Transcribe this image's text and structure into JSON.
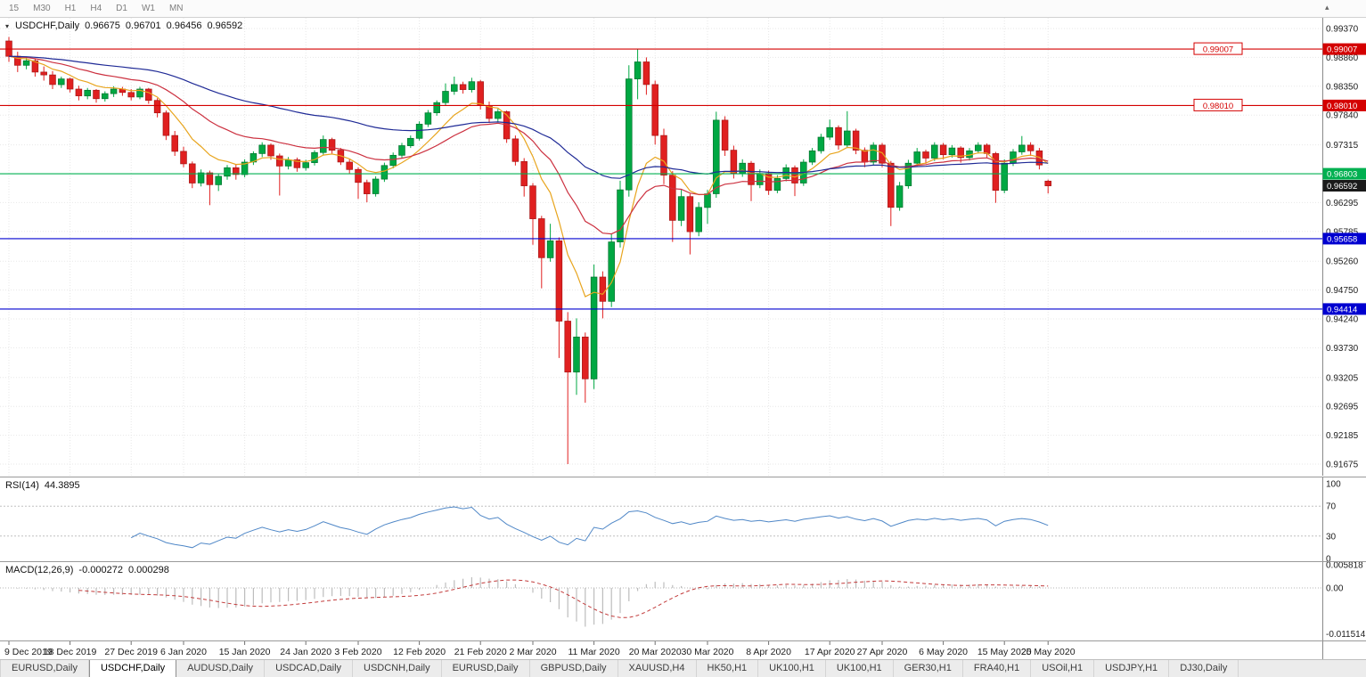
{
  "toolbar": {
    "timeframes": [
      "15",
      "M30",
      "H1",
      "H4",
      "D1",
      "W1",
      "MN"
    ],
    "scroll_icon": "▴"
  },
  "main": {
    "symbol_icon": "▾",
    "symbol": "USDCHF,Daily",
    "ohlc": {
      "open": "0.96675",
      "high": "0.96701",
      "low": "0.96456",
      "close": "0.96592"
    }
  },
  "rsi": {
    "name": "RSI(14)",
    "value": "44.3895",
    "axis": [
      "100",
      "70",
      "30",
      "0"
    ],
    "levels": [
      70,
      30
    ]
  },
  "macd": {
    "name": "MACD(12,26,9)",
    "main_value": "-0.000272",
    "signal_value": "0.000298",
    "axis": [
      "0.005818",
      "0.00",
      "-0.011514"
    ]
  },
  "tabs": [
    {
      "label": "EURUSD,Daily",
      "active": false
    },
    {
      "label": "USDCHF,Daily",
      "active": true
    },
    {
      "label": "AUDUSD,Daily",
      "active": false
    },
    {
      "label": "USDCAD,Daily",
      "active": false
    },
    {
      "label": "USDCNH,Daily",
      "active": false
    },
    {
      "label": "EURUSD,Daily",
      "active": false
    },
    {
      "label": "GBPUSD,Daily",
      "active": false
    },
    {
      "label": "XAUUSD,H4",
      "active": false
    },
    {
      "label": "HK50,H1",
      "active": false
    },
    {
      "label": "UK100,H1",
      "active": false
    },
    {
      "label": "UK100,H1",
      "active": false
    },
    {
      "label": "GER30,H1",
      "active": false
    },
    {
      "label": "FRA40,H1",
      "active": false
    },
    {
      "label": "USOil,H1",
      "active": false
    },
    {
      "label": "USDJPY,H1",
      "active": false
    },
    {
      "label": "DJ30,Daily",
      "active": false
    }
  ],
  "chart_data": {
    "type": "candlestick",
    "symbol": "USDCHF",
    "timeframe": "Daily",
    "title": "USDCHF,Daily 0.96675 0.96701 0.96456 0.96592",
    "colors": {
      "up": "#00a843",
      "up_stroke": "#00702c",
      "down": "#e02020",
      "down_stroke": "#a51414",
      "ma_fast": "#e8a51e",
      "ma_mid": "#cc3140",
      "ma_slow": "#1f2a96",
      "rsi_line": "#4f87c7",
      "macd_hist": "#bdbdbd",
      "macd_signal": "#c23b3b",
      "grid": "#e7e7e7",
      "hline_red": "#d40000",
      "hline_green": "#00b050",
      "hline_blue": "#0000d0",
      "current_tag_bg": "#1a1a1a"
    },
    "price_axis": [
      "0.99370",
      "0.98860",
      "0.98350",
      "0.97840",
      "0.97315",
      "0.96805",
      "0.96295",
      "0.95785",
      "0.95260",
      "0.94750",
      "0.94240",
      "0.93730",
      "0.93205",
      "0.92695",
      "0.92185",
      "0.91675"
    ],
    "rsi_axis": [
      "100",
      "70",
      "30",
      "0"
    ],
    "macd_axis": [
      "0.005818",
      "0.00",
      "-0.011514"
    ],
    "current_price": {
      "value": "0.96592",
      "price": 0.96592
    },
    "hlines": [
      {
        "price": 0.99007,
        "label": "0.99007",
        "color": "#d40000",
        "label_style": "inline-box"
      },
      {
        "price": 0.9801,
        "label": "0.98010",
        "color": "#d40000",
        "label_style": "inline-box"
      },
      {
        "price": 0.96803,
        "label": "0.96803",
        "color": "#00b050",
        "label_style": "axis-tag"
      },
      {
        "price": 0.95658,
        "label": "0.95658",
        "color": "#0000d0",
        "label_style": "axis-tag"
      },
      {
        "price": 0.94414,
        "label": "0.94414",
        "color": "#0000d0",
        "label_style": "axis-tag"
      }
    ],
    "ma_lines": [
      {
        "period": 8,
        "color": "#e8a51e"
      },
      {
        "period": 21,
        "color": "#cc3140"
      },
      {
        "period": 55,
        "color": "#1f2a96"
      }
    ],
    "indicators": {
      "rsi_period": 14,
      "rsi_last": 44.3895,
      "macd_fast": 12,
      "macd_slow": 26,
      "macd_signal_period": 9,
      "macd_last": -0.000272,
      "macd_signal_last": 0.000298
    },
    "date_labels": [
      {
        "index": 0,
        "label": "9 Dec 2019"
      },
      {
        "index": 7,
        "label": "18 Dec 2019"
      },
      {
        "index": 14,
        "label": "27 Dec 2019"
      },
      {
        "index": 20,
        "label": "6 Jan 2020"
      },
      {
        "index": 27,
        "label": "15 Jan 2020"
      },
      {
        "index": 34,
        "label": "24 Jan 2020"
      },
      {
        "index": 40,
        "label": "3 Feb 2020"
      },
      {
        "index": 47,
        "label": "12 Feb 2020"
      },
      {
        "index": 54,
        "label": "21 Feb 2020"
      },
      {
        "index": 60,
        "label": "2 Mar 2020"
      },
      {
        "index": 67,
        "label": "11 Mar 2020"
      },
      {
        "index": 74,
        "label": "20 Mar 2020"
      },
      {
        "index": 80,
        "label": "30 Mar 2020"
      },
      {
        "index": 87,
        "label": "8 Apr 2020"
      },
      {
        "index": 94,
        "label": "17 Apr 2020"
      },
      {
        "index": 100,
        "label": "27 Apr 2020"
      },
      {
        "index": 107,
        "label": "6 May 2020"
      },
      {
        "index": 114,
        "label": "15 May 2020"
      },
      {
        "index": 119,
        "label": "25 May 2020"
      }
    ],
    "candles": [
      [
        0.9915,
        0.9922,
        0.9878,
        0.9888
      ],
      [
        0.9888,
        0.9896,
        0.986,
        0.9872
      ],
      [
        0.9872,
        0.9885,
        0.9865,
        0.988
      ],
      [
        0.988,
        0.9884,
        0.9852,
        0.986
      ],
      [
        0.986,
        0.987,
        0.9845,
        0.9855
      ],
      [
        0.9855,
        0.9862,
        0.983,
        0.9838
      ],
      [
        0.9838,
        0.9852,
        0.9832,
        0.9848
      ],
      [
        0.9848,
        0.985,
        0.9824,
        0.983
      ],
      [
        0.983,
        0.9836,
        0.981,
        0.9818
      ],
      [
        0.9818,
        0.9832,
        0.9812,
        0.9828
      ],
      [
        0.9828,
        0.983,
        0.9806,
        0.9813
      ],
      [
        0.9813,
        0.9826,
        0.9808,
        0.9822
      ],
      [
        0.9822,
        0.9835,
        0.9816,
        0.983
      ],
      [
        0.983,
        0.9834,
        0.9818,
        0.9824
      ],
      [
        0.9824,
        0.983,
        0.981,
        0.9816
      ],
      [
        0.9816,
        0.9834,
        0.9812,
        0.983
      ],
      [
        0.983,
        0.9832,
        0.9804,
        0.981
      ],
      [
        0.981,
        0.9814,
        0.978,
        0.9788
      ],
      [
        0.9788,
        0.9792,
        0.974,
        0.9748
      ],
      [
        0.9748,
        0.9756,
        0.9712,
        0.972
      ],
      [
        0.972,
        0.9728,
        0.9692,
        0.9698
      ],
      [
        0.9698,
        0.9702,
        0.9655,
        0.9664
      ],
      [
        0.9664,
        0.9688,
        0.9658,
        0.9682
      ],
      [
        0.9682,
        0.9686,
        0.9625,
        0.9661
      ],
      [
        0.9661,
        0.968,
        0.965,
        0.9676
      ],
      [
        0.9676,
        0.9696,
        0.967,
        0.9691
      ],
      [
        0.9691,
        0.9697,
        0.967,
        0.9679
      ],
      [
        0.9679,
        0.9706,
        0.9674,
        0.9701
      ],
      [
        0.9701,
        0.972,
        0.9696,
        0.9716
      ],
      [
        0.9716,
        0.9736,
        0.971,
        0.9731
      ],
      [
        0.9731,
        0.9734,
        0.9705,
        0.9712
      ],
      [
        0.9712,
        0.9716,
        0.9642,
        0.9694
      ],
      [
        0.9694,
        0.971,
        0.9688,
        0.9705
      ],
      [
        0.9705,
        0.9709,
        0.9684,
        0.9691
      ],
      [
        0.9691,
        0.9705,
        0.9686,
        0.97
      ],
      [
        0.97,
        0.9722,
        0.9695,
        0.9718
      ],
      [
        0.9718,
        0.9748,
        0.9714,
        0.9741
      ],
      [
        0.9741,
        0.9744,
        0.9716,
        0.9722
      ],
      [
        0.9722,
        0.9726,
        0.9696,
        0.9701
      ],
      [
        0.9701,
        0.9706,
        0.968,
        0.9688
      ],
      [
        0.9688,
        0.9692,
        0.9636,
        0.9665
      ],
      [
        0.9665,
        0.967,
        0.963,
        0.9645
      ],
      [
        0.9645,
        0.9676,
        0.964,
        0.9671
      ],
      [
        0.9671,
        0.97,
        0.9666,
        0.9695
      ],
      [
        0.9695,
        0.9718,
        0.969,
        0.9713
      ],
      [
        0.9713,
        0.9735,
        0.9708,
        0.973
      ],
      [
        0.973,
        0.9748,
        0.9726,
        0.9743
      ],
      [
        0.9743,
        0.9773,
        0.9739,
        0.9768
      ],
      [
        0.9768,
        0.9793,
        0.9763,
        0.9788
      ],
      [
        0.9788,
        0.981,
        0.9783,
        0.9806
      ],
      [
        0.9806,
        0.984,
        0.9801,
        0.9826
      ],
      [
        0.9826,
        0.9852,
        0.982,
        0.9838
      ],
      [
        0.9838,
        0.9843,
        0.9822,
        0.9829
      ],
      [
        0.9829,
        0.985,
        0.9824,
        0.9843
      ],
      [
        0.9843,
        0.9846,
        0.9794,
        0.9801
      ],
      [
        0.9801,
        0.9808,
        0.977,
        0.9778
      ],
      [
        0.9778,
        0.9795,
        0.9772,
        0.979
      ],
      [
        0.979,
        0.9792,
        0.9735,
        0.9742
      ],
      [
        0.9742,
        0.9748,
        0.9695,
        0.9702
      ],
      [
        0.9702,
        0.9708,
        0.964,
        0.9659
      ],
      [
        0.9659,
        0.9664,
        0.9555,
        0.9601
      ],
      [
        0.9601,
        0.9606,
        0.9478,
        0.9532
      ],
      [
        0.9532,
        0.9592,
        0.9525,
        0.9562
      ],
      [
        0.9562,
        0.9568,
        0.9355,
        0.942
      ],
      [
        0.942,
        0.9436,
        0.91675,
        0.933
      ],
      [
        0.933,
        0.9425,
        0.929,
        0.9392
      ],
      [
        0.9392,
        0.94,
        0.9276,
        0.9318
      ],
      [
        0.9318,
        0.952,
        0.93,
        0.9498
      ],
      [
        0.9498,
        0.9508,
        0.9425,
        0.9455
      ],
      [
        0.9455,
        0.9575,
        0.9445,
        0.956
      ],
      [
        0.956,
        0.9668,
        0.955,
        0.9652
      ],
      [
        0.9652,
        0.9872,
        0.964,
        0.9848
      ],
      [
        0.9848,
        0.99007,
        0.9812,
        0.9878
      ],
      [
        0.9878,
        0.9886,
        0.982,
        0.9838
      ],
      [
        0.9838,
        0.9845,
        0.9732,
        0.9748
      ],
      [
        0.9748,
        0.976,
        0.9662,
        0.9678
      ],
      [
        0.9678,
        0.9685,
        0.956,
        0.9598
      ],
      [
        0.9598,
        0.9652,
        0.9588,
        0.964
      ],
      [
        0.964,
        0.9645,
        0.9538,
        0.9578
      ],
      [
        0.9578,
        0.963,
        0.957,
        0.9621
      ],
      [
        0.9621,
        0.9652,
        0.9592,
        0.9645
      ],
      [
        0.9645,
        0.979,
        0.9638,
        0.9775
      ],
      [
        0.9775,
        0.9782,
        0.9712,
        0.9722
      ],
      [
        0.9722,
        0.973,
        0.9672,
        0.9681
      ],
      [
        0.9681,
        0.9706,
        0.9675,
        0.9699
      ],
      [
        0.9699,
        0.9703,
        0.9632,
        0.9661
      ],
      [
        0.9661,
        0.9688,
        0.9655,
        0.9681
      ],
      [
        0.9681,
        0.9686,
        0.9643,
        0.9651
      ],
      [
        0.9651,
        0.9678,
        0.9646,
        0.9672
      ],
      [
        0.9672,
        0.9697,
        0.9667,
        0.9691
      ],
      [
        0.9691,
        0.9695,
        0.9641,
        0.9664
      ],
      [
        0.9664,
        0.9706,
        0.9659,
        0.9701
      ],
      [
        0.9701,
        0.9726,
        0.9696,
        0.9721
      ],
      [
        0.9721,
        0.9751,
        0.9716,
        0.9745
      ],
      [
        0.9745,
        0.9776,
        0.974,
        0.9762
      ],
      [
        0.9762,
        0.9766,
        0.9723,
        0.9731
      ],
      [
        0.9731,
        0.9791,
        0.9726,
        0.9756
      ],
      [
        0.9756,
        0.976,
        0.9715,
        0.9722
      ],
      [
        0.9722,
        0.9727,
        0.9692,
        0.9701
      ],
      [
        0.9701,
        0.9736,
        0.9696,
        0.9731
      ],
      [
        0.9731,
        0.9735,
        0.9692,
        0.9699
      ],
      [
        0.9699,
        0.9703,
        0.9588,
        0.9621
      ],
      [
        0.9621,
        0.9666,
        0.9615,
        0.9659
      ],
      [
        0.9659,
        0.9705,
        0.9654,
        0.9699
      ],
      [
        0.9699,
        0.9726,
        0.9694,
        0.9719
      ],
      [
        0.9719,
        0.9723,
        0.9698,
        0.9708
      ],
      [
        0.9708,
        0.9736,
        0.9703,
        0.9731
      ],
      [
        0.9731,
        0.9735,
        0.9706,
        0.9714
      ],
      [
        0.9714,
        0.9731,
        0.9709,
        0.9726
      ],
      [
        0.9726,
        0.9729,
        0.97,
        0.9709
      ],
      [
        0.9709,
        0.9726,
        0.9704,
        0.9721
      ],
      [
        0.9721,
        0.9736,
        0.9716,
        0.9731
      ],
      [
        0.9731,
        0.9734,
        0.9708,
        0.9716
      ],
      [
        0.9716,
        0.9719,
        0.9629,
        0.9651
      ],
      [
        0.9651,
        0.9706,
        0.9646,
        0.9699
      ],
      [
        0.9699,
        0.9724,
        0.9694,
        0.9719
      ],
      [
        0.9719,
        0.9747,
        0.9714,
        0.9731
      ],
      [
        0.9731,
        0.9736,
        0.9712,
        0.9721
      ],
      [
        0.9721,
        0.9726,
        0.9688,
        0.9696
      ],
      [
        0.96675,
        0.96701,
        0.96456,
        0.96592
      ]
    ]
  }
}
